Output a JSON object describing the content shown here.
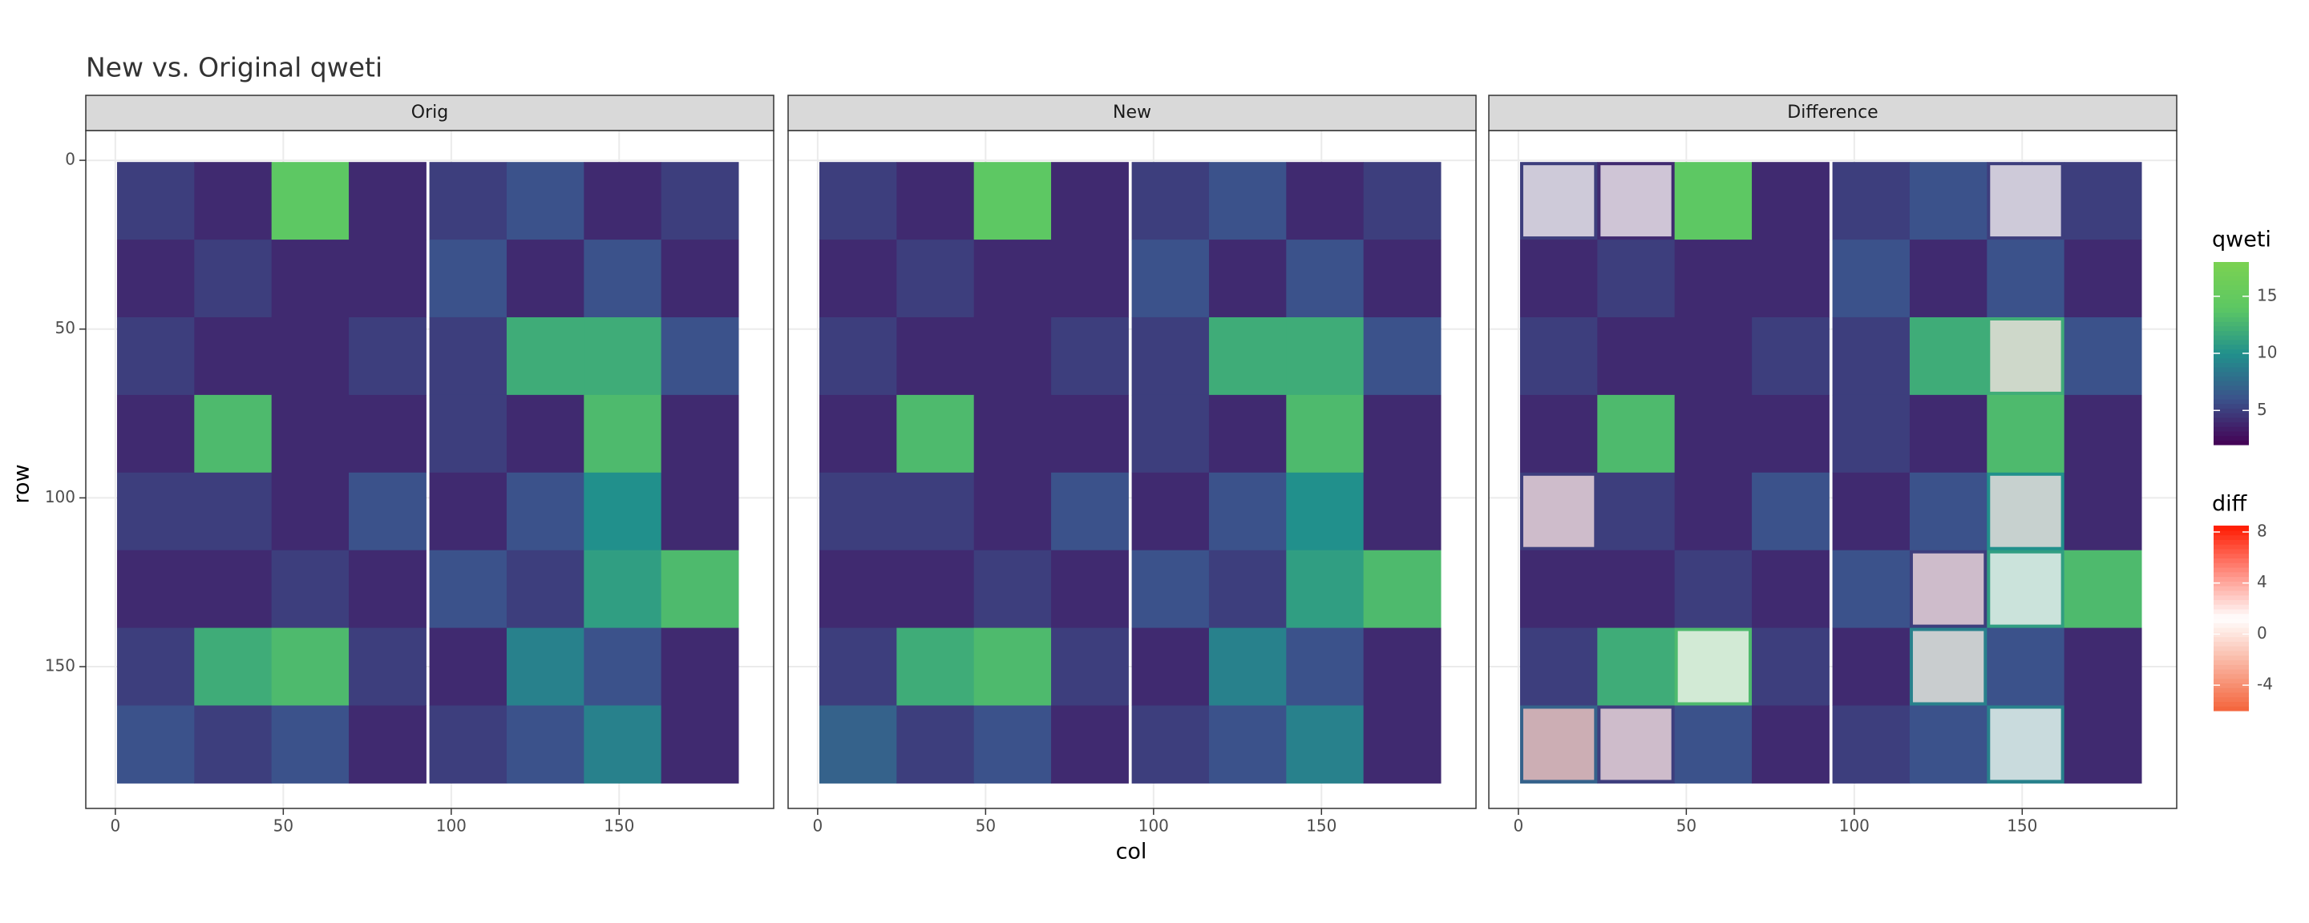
{
  "chart_data": {
    "type": "heatmap",
    "title": "New vs. Original qweti",
    "xlabel": "col",
    "ylabel": "row",
    "x": [
      12,
      35,
      58,
      81,
      105,
      128,
      151,
      174
    ],
    "y": [
      12,
      35,
      58,
      81,
      104,
      127,
      150,
      173
    ],
    "xlim": [
      -8.8,
      196
    ],
    "ylim": [
      -8.8,
      192
    ],
    "y_reversed": true,
    "xticks": [
      0,
      50,
      100,
      150
    ],
    "yticks": [
      0,
      50,
      100,
      150
    ],
    "grid": true,
    "facets": [
      {
        "name": "Orig",
        "values": [
          [
            5,
            4,
            14,
            4,
            5,
            6,
            4,
            5
          ],
          [
            4,
            5,
            4,
            4,
            6,
            4,
            6,
            4
          ],
          [
            5,
            4,
            4,
            5,
            5,
            12,
            12,
            6
          ],
          [
            4,
            13,
            4,
            4,
            5,
            4,
            13,
            4
          ],
          [
            5,
            5,
            4,
            6,
            4,
            6,
            10,
            4
          ],
          [
            4,
            4,
            5,
            4,
            6,
            5,
            11,
            13
          ],
          [
            5,
            12,
            13,
            5,
            4,
            9,
            6,
            4
          ],
          [
            6,
            5,
            6,
            4,
            5,
            6,
            9,
            4
          ]
        ]
      },
      {
        "name": "New",
        "values": [
          [
            5,
            4,
            14,
            4,
            5,
            6,
            4,
            5
          ],
          [
            4,
            5,
            4,
            4,
            6,
            4,
            6,
            4
          ],
          [
            5,
            4,
            4,
            5,
            5,
            12,
            12,
            6
          ],
          [
            4,
            13,
            4,
            4,
            5,
            4,
            13,
            4
          ],
          [
            5,
            5,
            4,
            6,
            4,
            6,
            10,
            4
          ],
          [
            4,
            4,
            5,
            4,
            6,
            5,
            11,
            13
          ],
          [
            5,
            12,
            13,
            5,
            4,
            9,
            6,
            4
          ],
          [
            7,
            5,
            6,
            4,
            5,
            6,
            9,
            4
          ]
        ]
      },
      {
        "name": "Difference",
        "values": [
          [
            5,
            4,
            14,
            4,
            5,
            6,
            5,
            5
          ],
          [
            4,
            5,
            4,
            4,
            6,
            4,
            6,
            4
          ],
          [
            5,
            4,
            4,
            5,
            5,
            12,
            12,
            6
          ],
          [
            4,
            13,
            4,
            4,
            5,
            4,
            13,
            4
          ],
          [
            5,
            5,
            4,
            6,
            4,
            6,
            10,
            4
          ],
          [
            4,
            4,
            5,
            4,
            6,
            5,
            11,
            13
          ],
          [
            5,
            12,
            13,
            5,
            4,
            9,
            6,
            4
          ],
          [
            7,
            5,
            6,
            4,
            5,
            6,
            9,
            4
          ]
        ],
        "diff": [
          [
            1,
            1,
            null,
            null,
            null,
            null,
            1,
            null
          ],
          [
            null,
            null,
            null,
            null,
            null,
            null,
            null,
            null
          ],
          [
            null,
            null,
            null,
            null,
            null,
            null,
            2,
            null
          ],
          [
            null,
            null,
            null,
            null,
            null,
            null,
            null,
            null
          ],
          [
            2,
            null,
            null,
            null,
            null,
            null,
            2,
            null
          ],
          [
            null,
            null,
            null,
            null,
            null,
            2,
            1,
            null
          ],
          [
            null,
            null,
            1,
            null,
            null,
            2,
            null,
            null
          ],
          [
            3,
            2,
            null,
            null,
            null,
            null,
            1,
            null
          ]
        ]
      }
    ],
    "legends": [
      {
        "name": "qweti",
        "range": [
          2,
          18
        ],
        "ticks": [
          5,
          10,
          15
        ],
        "colors": [
          "#440154",
          "#3b528b",
          "#21908c",
          "#5dc863",
          "#7ad151"
        ]
      },
      {
        "name": "diff",
        "range": [
          -6,
          8.5
        ],
        "ticks": [
          -4,
          0,
          4,
          8
        ],
        "colors": [
          "#f4633a",
          "#ffffff",
          "#ff1a00"
        ]
      }
    ]
  }
}
